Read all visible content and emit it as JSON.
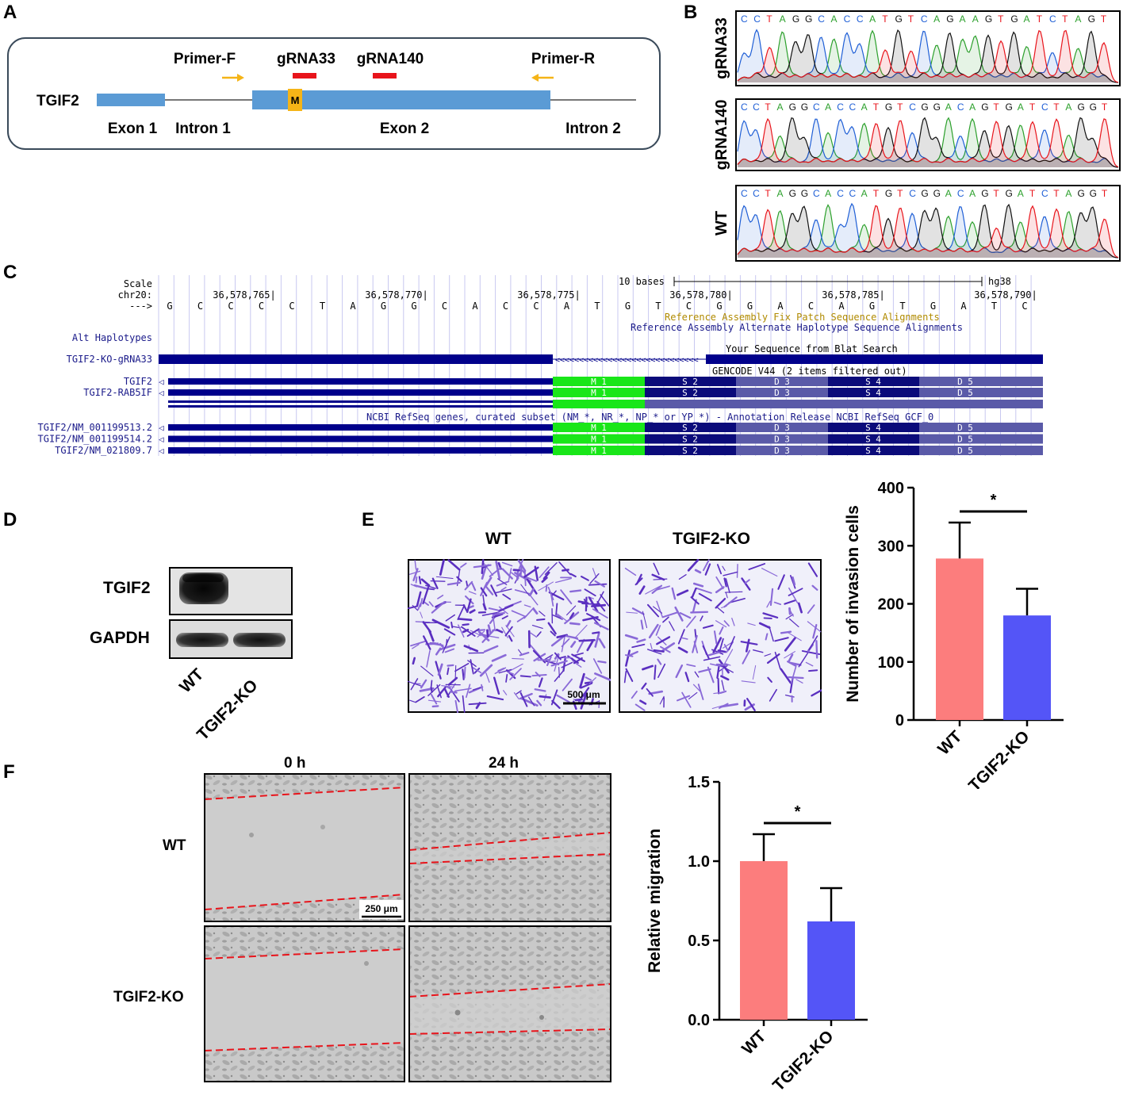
{
  "panels": {
    "A": "A",
    "B": "B",
    "C": "C",
    "D": "D",
    "E": "E",
    "F": "F"
  },
  "panelA": {
    "gene": "TGIF2",
    "primer_f": "Primer-F",
    "primer_r": "Primer-R",
    "grna33": "gRNA33",
    "grna140": "gRNA140",
    "start_codon": "M",
    "exon1": "Exon 1",
    "intron1": "Intron 1",
    "exon2": "Exon 2",
    "intron2": "Intron 2",
    "colors": {
      "exon": "#5b9bd5",
      "grna": "#e8141b",
      "primer": "#f5b417",
      "start": "#f5b417"
    }
  },
  "panelB": {
    "tracks": [
      {
        "label": "gRNA33",
        "sequence": "C C T A G G C A C C A T G T C A G A A G T G A T C T A G T"
      },
      {
        "label": "gRNA140",
        "sequence": "C C T A G G C A C C A T G T C G G A C A G T G A T C T A G G T"
      },
      {
        "label": "WT",
        "sequence": "C C T A G G C A C C A T G T C G G A C A G T G A T C T A G G T"
      }
    ]
  },
  "panelC": {
    "scale_label": "Scale",
    "chr_label": "chr20:",
    "arrow_label": "--->",
    "scale_bar": "10 bases",
    "assembly": "hg38",
    "positions": [
      "36,578,765|",
      "36,578,770|",
      "36,578,775|",
      "36,578,780|",
      "36,578,785|",
      "36,578,790|"
    ],
    "bases": [
      "G",
      "C",
      "C",
      "C",
      "C",
      "T",
      "A",
      "G",
      "G",
      "C",
      "A",
      "C",
      "C",
      "A",
      "T",
      "G",
      "T",
      "C",
      "G",
      "G",
      "A",
      "C",
      "A",
      "G",
      "T",
      "G",
      "A",
      "T",
      "C"
    ],
    "fix_patch": "Reference Assembly Fix Patch Sequence Alignments",
    "alt_hap_text": "Reference Assembly Alternate Haplotype Sequence Alignments",
    "alt_haplotypes": "Alt Haplotypes",
    "blat_track": "TGIF2-KO-gRNA33",
    "blat_text": "Your Sequence from Blat Search",
    "gencode_text": "GENCODE V44 (2 items filtered out)",
    "gencode_tracks": [
      "TGIF2",
      "TGIF2-RAB5IF"
    ],
    "refseq_text": "NCBI RefSeq genes, curated subset (NM_*, NR_*, NP_* or YP_*) - Annotation Release NCBI RefSeq GCF_0",
    "refseq_tracks": [
      "TGIF2/NM_001199513.2",
      "TGIF2/NM_001199514.2",
      "TGIF2/NM_021809.7"
    ],
    "codons": [
      "M 1",
      "S 2",
      "D 3",
      "S 4",
      "D 5"
    ]
  },
  "panelD": {
    "rows": [
      "TGIF2",
      "GAPDH"
    ],
    "lanes": [
      "WT",
      "TGIF2-KO"
    ]
  },
  "panelE": {
    "images": [
      "WT",
      "TGIF2-KO"
    ],
    "scale_bar": "500 μm"
  },
  "panelF": {
    "columns": [
      "0 h",
      "24 h"
    ],
    "rows": [
      "WT",
      "TGIF2-KO"
    ],
    "scale_bar": "250 μm"
  },
  "chart_data": [
    {
      "type": "bar",
      "title": "",
      "xlabel": "",
      "ylabel": "Number of invasion cells",
      "categories": [
        "WT",
        "TGIF2-KO"
      ],
      "values": [
        278,
        180
      ],
      "errors": [
        62,
        46
      ],
      "colors": [
        "#fc7d7d",
        "#5455f7"
      ],
      "ylim": [
        0,
        400
      ],
      "yticks": [
        "0",
        "100",
        "200",
        "300",
        "400"
      ],
      "significance": "*"
    },
    {
      "type": "bar",
      "title": "",
      "xlabel": "",
      "ylabel": "Relative migration",
      "categories": [
        "WT",
        "TGIF2-KO"
      ],
      "values": [
        1.0,
        0.62
      ],
      "errors": [
        0.17,
        0.21
      ],
      "colors": [
        "#fc7d7d",
        "#5455f7"
      ],
      "ylim": [
        0,
        1.5
      ],
      "yticks": [
        "0.0",
        "0.5",
        "1.0",
        "1.5"
      ],
      "significance": "*"
    }
  ]
}
